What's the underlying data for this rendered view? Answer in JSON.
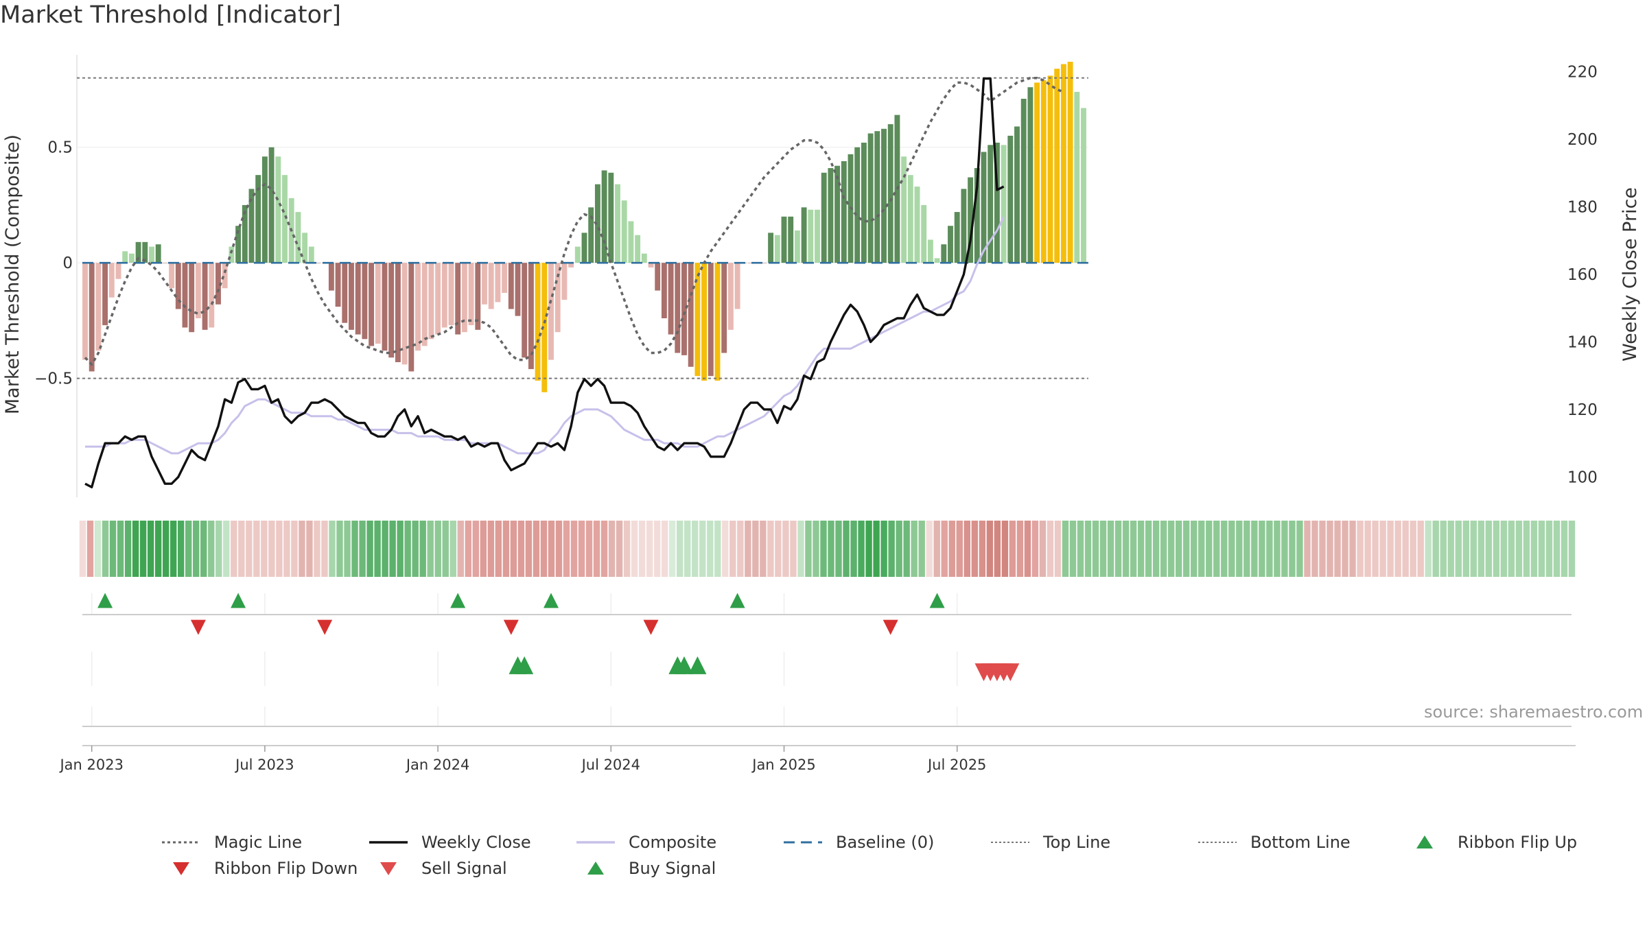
{
  "title": "Market Threshold [Indicator]",
  "source": "source: sharemaestro.com",
  "colors": {
    "bar_dark_green": "#5b8c5a",
    "bar_light_green": "#a9d8a6",
    "bar_dark_red": "#a9706c",
    "bar_light_red": "#e8b9b3",
    "bar_yellow": "#f5be0b",
    "close_line": "#111111",
    "composite_line": "#c7c0ea",
    "magic_line": "#666666",
    "baseline": "#2f6f9f",
    "top_bottom_line": "#777777",
    "signal_up": "#2e9e48",
    "signal_down": "#d62f2f",
    "grid": "#ebebeb"
  },
  "chart_data": {
    "type": "bar+line",
    "title": "Market Threshold [Indicator]",
    "ylabel_left": "Market Threshold (Composite)",
    "ylabel_right": "Weekly Close Price",
    "ylim_left": [
      -1.0,
      0.9
    ],
    "yticks_left": [
      0.5,
      0,
      -0.5
    ],
    "ytick_labels_left": [
      "0.5",
      "0",
      "−0.5"
    ],
    "ylim_right": [
      95,
      225
    ],
    "yticks_right": [
      100,
      120,
      140,
      160,
      180,
      200,
      220
    ],
    "start_date": "2022-12-26",
    "x_ticks": [
      {
        "label": "Jan 2023",
        "week": 1
      },
      {
        "label": "Jul 2023",
        "week": 27
      },
      {
        "label": "Jan 2024",
        "week": 53
      },
      {
        "label": "Jul 2024",
        "week": 79
      },
      {
        "label": "Jan 2025",
        "week": 105
      },
      {
        "label": "Jul 2025",
        "week": 131
      }
    ],
    "top_line": 0.8,
    "bottom_line": -0.5,
    "baseline": 0,
    "composite_bars": [
      -0.42,
      -0.47,
      -0.38,
      -0.27,
      -0.15,
      -0.07,
      0.05,
      0.04,
      0.09,
      0.09,
      0.07,
      0.08,
      0,
      -0.11,
      -0.2,
      -0.28,
      -0.3,
      -0.24,
      -0.29,
      -0.28,
      -0.18,
      -0.11,
      0.07,
      0.16,
      0.25,
      0.32,
      0.38,
      0.46,
      0.5,
      0.46,
      0.38,
      0.28,
      0.22,
      0.13,
      0.07,
      0,
      0,
      -0.12,
      -0.19,
      -0.26,
      -0.29,
      -0.31,
      -0.33,
      -0.36,
      -0.35,
      -0.38,
      -0.41,
      -0.43,
      -0.44,
      -0.47,
      -0.38,
      -0.36,
      -0.33,
      -0.31,
      -0.28,
      -0.27,
      -0.31,
      -0.3,
      -0.27,
      -0.29,
      -0.18,
      -0.2,
      -0.17,
      -0.13,
      -0.2,
      -0.23,
      -0.41,
      -0.46,
      -0.51,
      -0.56,
      -0.42,
      -0.3,
      -0.16,
      -0.02,
      0.07,
      0.13,
      0.24,
      0.34,
      0.4,
      0.39,
      0.34,
      0.27,
      0.18,
      0.12,
      0.04,
      -0.02,
      -0.12,
      -0.24,
      -0.31,
      -0.39,
      -0.4,
      -0.45,
      -0.49,
      -0.51,
      -0.49,
      -0.51,
      -0.39,
      -0.29,
      -0.2,
      0,
      0,
      0,
      0,
      0.13,
      0.12,
      0.2,
      0.2,
      0.14,
      0.24,
      0.23,
      0.23,
      0.39,
      0.41,
      0.42,
      0.44,
      0.47,
      0.5,
      0.52,
      0.56,
      0.57,
      0.58,
      0.6,
      0.64,
      0.46,
      0.38,
      0.33,
      0.25,
      0.1,
      0.02,
      0.08,
      0.16,
      0.22,
      0.32,
      0.37,
      0.41,
      0.48,
      0.51,
      0.52,
      0.51,
      0.55,
      0.59,
      0.71,
      0.76,
      0.78,
      0.79,
      0.81,
      0.84,
      0.86,
      0.87,
      0.74,
      0.67
    ],
    "bar_colors": [
      "LR",
      "DR",
      "LR",
      "DR",
      "LR",
      "LR",
      "LG",
      "LG",
      "DG",
      "DG",
      "LG",
      "DG",
      "DR",
      "LR",
      "DR",
      "DR",
      "DR",
      "LR",
      "DR",
      "LR",
      "DR",
      "LR",
      "LG",
      "DG",
      "DG",
      "DG",
      "DG",
      "DG",
      "DG",
      "LG",
      "LG",
      "LG",
      "LG",
      "LG",
      "LG",
      "DR",
      "LR",
      "DR",
      "DR",
      "DR",
      "DR",
      "DR",
      "DR",
      "DR",
      "LR",
      "DR",
      "DR",
      "DR",
      "LR",
      "DR",
      "LR",
      "LR",
      "LR",
      "LR",
      "LR",
      "LR",
      "DR",
      "LR",
      "LR",
      "DR",
      "LR",
      "LR",
      "LR",
      "LR",
      "DR",
      "DR",
      "DR",
      "DR",
      "Y",
      "Y",
      "LR",
      "LR",
      "LR",
      "LR",
      "LG",
      "DG",
      "DG",
      "DG",
      "DG",
      "DG",
      "LG",
      "LG",
      "LG",
      "LG",
      "LG",
      "LR",
      "DR",
      "DR",
      "DR",
      "DR",
      "DR",
      "DR",
      "Y",
      "Y",
      "DR",
      "Y",
      "DR",
      "LR",
      "LR",
      "DR",
      "DR",
      "DR",
      "DR",
      "DG",
      "LG",
      "DG",
      "DG",
      "LG",
      "DG",
      "LG",
      "LG",
      "DG",
      "DG",
      "DG",
      "DG",
      "DG",
      "DG",
      "DG",
      "DG",
      "DG",
      "DG",
      "DG",
      "DG",
      "LG",
      "LG",
      "LG",
      "LG",
      "LG",
      "LG",
      "DG",
      "DG",
      "DG",
      "DG",
      "DG",
      "DG",
      "DG",
      "DG",
      "DG",
      "LG",
      "DG",
      "DG",
      "DG",
      "DG",
      "Y",
      "Y",
      "Y",
      "Y",
      "Y",
      "Y",
      "LG",
      "LG"
    ],
    "magic_line": [
      -0.41,
      -0.44,
      -0.39,
      -0.31,
      -0.23,
      -0.15,
      -0.08,
      -0.02,
      0.02,
      0.01,
      -0.01,
      -0.04,
      -0.08,
      -0.12,
      -0.16,
      -0.19,
      -0.21,
      -0.22,
      -0.21,
      -0.18,
      -0.12,
      -0.04,
      0.05,
      0.14,
      0.22,
      0.28,
      0.32,
      0.34,
      0.32,
      0.27,
      0.21,
      0.14,
      0.07,
      0,
      -0.07,
      -0.13,
      -0.18,
      -0.22,
      -0.26,
      -0.29,
      -0.32,
      -0.34,
      -0.36,
      -0.37,
      -0.38,
      -0.39,
      -0.39,
      -0.38,
      -0.37,
      -0.36,
      -0.35,
      -0.33,
      -0.32,
      -0.31,
      -0.3,
      -0.28,
      -0.26,
      -0.25,
      -0.25,
      -0.25,
      -0.26,
      -0.28,
      -0.32,
      -0.36,
      -0.4,
      -0.42,
      -0.42,
      -0.4,
      -0.34,
      -0.26,
      -0.16,
      -0.06,
      0.04,
      0.12,
      0.18,
      0.21,
      0.2,
      0.16,
      0.09,
      0,
      -0.08,
      -0.16,
      -0.24,
      -0.31,
      -0.36,
      -0.39,
      -0.39,
      -0.38,
      -0.35,
      -0.3,
      -0.22,
      -0.14,
      -0.06,
      0,
      0.05,
      0.09,
      0.13,
      0.17,
      0.21,
      0.25,
      0.29,
      0.33,
      0.37,
      0.4,
      0.43,
      0.46,
      0.49,
      0.51,
      0.53,
      0.53,
      0.52,
      0.49,
      0.44,
      0.37,
      0.28,
      0.24,
      0.2,
      0.18,
      0.18,
      0.2,
      0.23,
      0.27,
      0.32,
      0.37,
      0.43,
      0.49,
      0.55,
      0.61,
      0.66,
      0.71,
      0.75,
      0.78,
      0.78,
      0.77,
      0.75,
      0.73,
      0.7,
      0.72,
      0.74,
      0.76,
      0.78,
      0.79,
      0.8,
      0.8,
      0.79,
      0.77,
      0.75,
      0.74
    ],
    "weekly_close": [
      98,
      97,
      104,
      110,
      110,
      110,
      112,
      111,
      112,
      112,
      106,
      102,
      98,
      98,
      100,
      104,
      108,
      106,
      105,
      110,
      115,
      123,
      122,
      128,
      129,
      126,
      126,
      127,
      122,
      123,
      118,
      116,
      118,
      119,
      122,
      122,
      123,
      122,
      120,
      118,
      117,
      116,
      116,
      113,
      112,
      112,
      114,
      118,
      120,
      115,
      118,
      113,
      114,
      113,
      112,
      112,
      111,
      112,
      109,
      110,
      109,
      110,
      110,
      105,
      102,
      103,
      104,
      107,
      110,
      110,
      109,
      110,
      108,
      115,
      125,
      129,
      127,
      129,
      127,
      122,
      122,
      122,
      121,
      119,
      115,
      112,
      109,
      108,
      110,
      108,
      110,
      110,
      110,
      109,
      106,
      106,
      106,
      110,
      115,
      120,
      122,
      122,
      120,
      120,
      116,
      121,
      120,
      123,
      130,
      129,
      134,
      135,
      140,
      144,
      148,
      151,
      149,
      145,
      140,
      142,
      145,
      146,
      147,
      147,
      151,
      154,
      150,
      149,
      148,
      148,
      150,
      155,
      160,
      170,
      186,
      218,
      218,
      185,
      186
    ],
    "composite_line": [
      109,
      109,
      109,
      109,
      110,
      110,
      110,
      111,
      111,
      111,
      110,
      109,
      108,
      107,
      107,
      108,
      109,
      110,
      110,
      110,
      111,
      113,
      116,
      118,
      121,
      122,
      123,
      123,
      122,
      121,
      120,
      119,
      119,
      119,
      118,
      118,
      118,
      118,
      117,
      117,
      116,
      115,
      114,
      114,
      114,
      114,
      114,
      113,
      113,
      113,
      112,
      112,
      112,
      112,
      111,
      111,
      111,
      111,
      110,
      110,
      110,
      110,
      110,
      109,
      108,
      107,
      107,
      107,
      107,
      108,
      111,
      113,
      116,
      118,
      119,
      120,
      120,
      120,
      119,
      118,
      116,
      114,
      113,
      112,
      111,
      111,
      111,
      110,
      110,
      110,
      109,
      109,
      109,
      110,
      111,
      112,
      112,
      113,
      114,
      115,
      116,
      117,
      118,
      120,
      122,
      124,
      125,
      127,
      130,
      133,
      136,
      138,
      138,
      138,
      138,
      138,
      139,
      140,
      141,
      142,
      143,
      144,
      145,
      146,
      147,
      148,
      149,
      149,
      150,
      151,
      152,
      154,
      155,
      158,
      163,
      167,
      170,
      173,
      177
    ],
    "ribbon_colors": [
      "#f2dcd9",
      "#e2a4a0",
      "#cfe8d0",
      "#8ec995",
      "#6db97a",
      "#6db97a",
      "#5cb16c",
      "#3fa552",
      "#3fa552",
      "#3fa552",
      "#3fa552",
      "#3fa552",
      "#3fa552",
      "#4aab5e",
      "#6db97a",
      "#6db97a",
      "#6db97a",
      "#8ec995",
      "#a7d6ac",
      "#c3e3c6",
      "#ecc9c5",
      "#ecc9c5",
      "#ecc9c5",
      "#ecc9c5",
      "#ecc9c5",
      "#ecc9c5",
      "#ecc9c5",
      "#ecc9c5",
      "#ecc9c5",
      "#e2b4b0",
      "#e2b4b0",
      "#ecc9c5",
      "#ecc9c5",
      "#a7d6ac",
      "#8ec995",
      "#8ec995",
      "#6db97a",
      "#6db97a",
      "#5cb16c",
      "#5cb16c",
      "#5cb16c",
      "#5cb16c",
      "#5cb16c",
      "#6db97a",
      "#6db97a",
      "#6db97a",
      "#8ec995",
      "#8ec995",
      "#8ec995",
      "#a7d6ac",
      "#e2b4b0",
      "#e2a4a0",
      "#e2a4a0",
      "#dd9c97",
      "#dd9c97",
      "#dd9c97",
      "#dd9c97",
      "#dd9c97",
      "#dd9c97",
      "#dd9c97",
      "#dd9c97",
      "#dd9c97",
      "#dd9c97",
      "#dd9c97",
      "#e2a4a0",
      "#e2a4a0",
      "#e2a4a0",
      "#e2a4a0",
      "#e2a4a0",
      "#e2a4a0",
      "#e2b4b0",
      "#e2b4b0",
      "#ecc9c5",
      "#f2dcd9",
      "#f2dcd9",
      "#f2dcd9",
      "#f2dcd9",
      "#f2dcd9",
      "#d8ecd9",
      "#c3e3c6",
      "#c3e3c6",
      "#c3e3c6",
      "#c3e3c6",
      "#c3e3c6",
      "#c3e3c6",
      "#f2dcd9",
      "#ecc9c5",
      "#ecc9c5",
      "#e2b4b0",
      "#e2b4b0",
      "#e2b4b0",
      "#ecc9c5",
      "#ecc9c5",
      "#ecc9c5",
      "#ecc9c5",
      "#c3e3c6",
      "#8ec995",
      "#8ec995",
      "#6db97a",
      "#6db97a",
      "#6db97a",
      "#5cb16c",
      "#5cb16c",
      "#4aab5e",
      "#3fa552",
      "#3fa552",
      "#4aab5e",
      "#5cb16c",
      "#6db97a",
      "#6db97a",
      "#8ec995",
      "#8ec995",
      "#f2dcd9",
      "#e2b4b0",
      "#e2a4a0",
      "#dd9c97",
      "#dd9c97",
      "#d8918c",
      "#d8918c",
      "#d8918c",
      "#d28680",
      "#d28680",
      "#d28680",
      "#dd9c97",
      "#dd9c97",
      "#d8918c",
      "#e2a4a0",
      "#e2b4b0",
      "#ecc9c5",
      "#ecc9c5",
      "#8ec995",
      "#8ec995",
      "#8ec995",
      "#8ec995",
      "#8ec995",
      "#8ec995",
      "#8ec995",
      "#8ec995",
      "#8ec995",
      "#8ec995",
      "#8ec995",
      "#8ec995",
      "#8ec995",
      "#8ec995",
      "#8ec995",
      "#8ec995",
      "#8ec995",
      "#8ec995",
      "#8ec995",
      "#8ec995",
      "#8ec995",
      "#8ec995",
      "#8ec995",
      "#8ec995",
      "#8ec995",
      "#8ec995",
      "#8ec995",
      "#8ec995",
      "#8ec995",
      "#8ec995",
      "#8ec995",
      "#8ec995",
      "#e2b4b0",
      "#e2b4b0",
      "#e2b4b0",
      "#e2b4b0",
      "#e2b4b0",
      "#e2b4b0",
      "#e2b4b0",
      "#ecc9c5",
      "#ecc9c5",
      "#ecc9c5",
      "#ecc9c5",
      "#ecc9c5",
      "#ecc9c5",
      "#ecc9c5",
      "#ecc9c5",
      "#ecc9c5",
      "#c3e3c6",
      "#a7d6ac",
      "#a7d6ac",
      "#a7d6ac",
      "#a7d6ac",
      "#a7d6ac",
      "#a7d6ac",
      "#a7d6ac",
      "#a7d6ac",
      "#a7d6ac",
      "#a7d6ac",
      "#a7d6ac",
      "#a7d6ac",
      "#a7d6ac",
      "#a7d6ac",
      "#a7d6ac",
      "#a7d6ac",
      "#a7d6ac",
      "#a7d6ac",
      "#a7d6ac"
    ],
    "ribbon_flip_up_weeks": [
      3,
      23,
      56,
      70,
      98,
      128
    ],
    "ribbon_flip_down_weeks": [
      17,
      36,
      64,
      85,
      121
    ],
    "buy_signal_weeks": [
      65,
      66,
      89,
      90,
      92
    ],
    "sell_signal_weeks": [
      135,
      136,
      137,
      138,
      139
    ],
    "legend": [
      {
        "label": "Magic Line",
        "marker": "dotted-line",
        "color": "#666666"
      },
      {
        "label": "Weekly Close",
        "marker": "solid-line",
        "color": "#111111"
      },
      {
        "label": "Composite",
        "marker": "solid-line",
        "color": "#c7c0ea"
      },
      {
        "label": "Baseline (0)",
        "marker": "dashed-line",
        "color": "#2f6f9f"
      },
      {
        "label": "Top Line",
        "marker": "fine-dotted-line",
        "color": "#777777"
      },
      {
        "label": "Bottom Line",
        "marker": "fine-dotted-line",
        "color": "#777777"
      },
      {
        "label": "Ribbon Flip Up",
        "marker": "triangle-up",
        "color": "#2e9e48"
      },
      {
        "label": "Ribbon Flip Down",
        "marker": "triangle-down",
        "color": "#d62f2f"
      },
      {
        "label": "Sell Signal",
        "marker": "triangle-down",
        "color": "#e04b4b"
      },
      {
        "label": "Buy Signal",
        "marker": "triangle-up",
        "color": "#2e9e48"
      }
    ]
  }
}
